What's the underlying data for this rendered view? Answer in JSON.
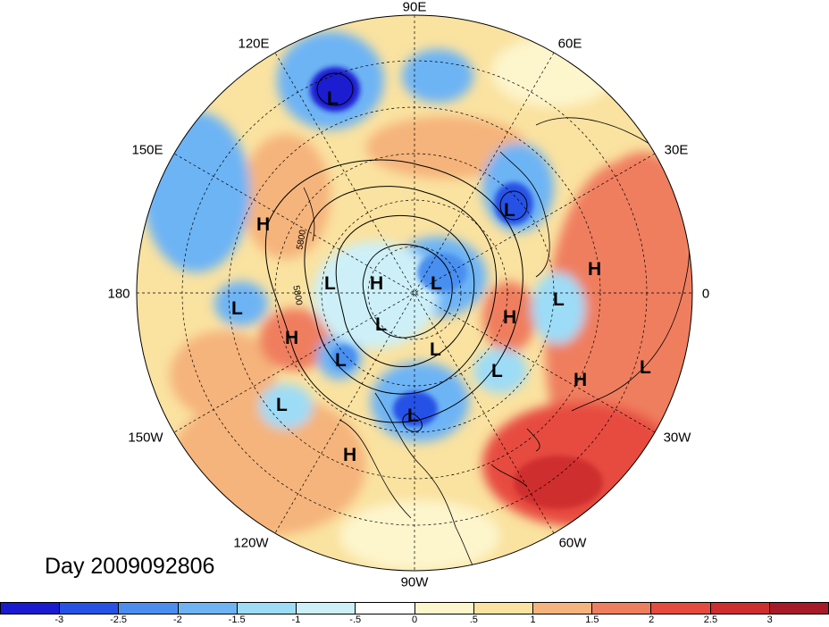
{
  "title": "Day 2009092806",
  "longitude_labels": [
    "90E",
    "60E",
    "30E",
    "0",
    "30W",
    "60W",
    "90W",
    "120W",
    "150W",
    "180",
    "150E",
    "120E"
  ],
  "contour_labels": [
    "5800",
    "5800"
  ],
  "pressure_markers": [
    {
      "type": "L",
      "name": "low-ne-asia"
    },
    {
      "type": "H",
      "name": "high-pacific-west"
    },
    {
      "type": "L",
      "name": "low-europe-north"
    },
    {
      "type": "L",
      "name": "low-arctic-1"
    },
    {
      "type": "H",
      "name": "high-arctic"
    },
    {
      "type": "L",
      "name": "low-arctic-2"
    },
    {
      "type": "H",
      "name": "high-atlantic-north"
    },
    {
      "type": "L",
      "name": "low-atlantic-east"
    },
    {
      "type": "H",
      "name": "high-europe-west"
    },
    {
      "type": "L",
      "name": "low-pacific-center"
    },
    {
      "type": "H",
      "name": "high-pacific-east"
    },
    {
      "type": "L",
      "name": "low-arctic-3"
    },
    {
      "type": "L",
      "name": "low-arctic-4"
    },
    {
      "type": "L",
      "name": "low-alaska"
    },
    {
      "type": "L",
      "name": "low-greenland"
    },
    {
      "type": "H",
      "name": "high-atlantic-mid"
    },
    {
      "type": "L",
      "name": "low-africa-west"
    },
    {
      "type": "L",
      "name": "low-pacific-south"
    },
    {
      "type": "L",
      "name": "low-hudson"
    },
    {
      "type": "H",
      "name": "high-us-southwest"
    }
  ],
  "colorbar": {
    "colors": [
      "#1a1ad1",
      "#2851e6",
      "#4a8ff0",
      "#6db4f5",
      "#9ddcf7",
      "#cdf0f8",
      "#ffffff",
      "#fdf5cc",
      "#fae2a0",
      "#f5b47c",
      "#ef7e5e",
      "#e74b3f",
      "#cf2e2e",
      "#a81a28"
    ],
    "ticks": [
      "-3",
      "-2.5",
      "-2",
      "-1.5",
      "-1",
      "-.5",
      "0",
      ".5",
      "1",
      "1.5",
      "2",
      "2.5",
      "3"
    ]
  }
}
